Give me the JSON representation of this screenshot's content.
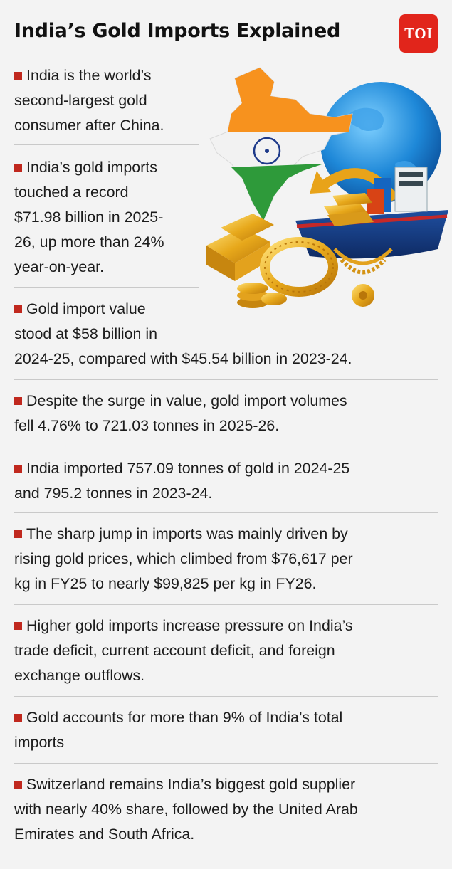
{
  "header": {
    "title": "India’s Gold Imports Explained",
    "logo_text": "TOI"
  },
  "colors": {
    "background": "#f3f3f3",
    "bullet": "#c0281e",
    "logo_bg": "#e1251b",
    "divider": "#c9c9c9"
  },
  "illustration": {
    "icons": [
      "india-map-icon",
      "globe-icon",
      "cargo-ship-icon",
      "gold-bars-icon",
      "gold-coins-icon",
      "gold-bangle-icon",
      "gold-necklace-icon",
      "curved-arrow-icon"
    ]
  },
  "items": [
    {
      "lines": [
        "India is the world’s",
        "second-largest gold",
        "consumer after China."
      ]
    },
    {
      "lines": [
        "India’s gold imports",
        "touched a record",
        "$71.98 billion in 2025-",
        "26, up more than 24%",
        "year-on-year."
      ]
    },
    {
      "lines": [
        "Gold import value",
        "stood at $58 billion in",
        "2024-25, compared with $45.54 billion in 2023-24."
      ]
    },
    {
      "lines": [
        "Despite the surge in value, gold import volumes",
        "fell 4.76% to 721.03 tonnes in 2025-26."
      ]
    },
    {
      "lines": [
        "India imported 757.09 tonnes of gold in 2024-25",
        "and 795.2 tonnes in 2023-24."
      ]
    },
    {
      "lines": [
        "The sharp jump in imports was mainly driven by",
        "rising gold prices, which climbed from $76,617 per",
        "kg in FY25 to nearly $99,825 per kg in FY26."
      ]
    },
    {
      "lines": [
        "Higher gold imports increase pressure on India’s",
        "trade deficit, current account deficit, and foreign",
        "exchange outflows."
      ]
    },
    {
      "lines": [
        "Gold accounts for more than 9% of India’s total",
        "imports"
      ]
    },
    {
      "lines": [
        "Switzerland remains India’s biggest gold supplier",
        "with nearly 40% share, followed by the United Arab",
        "Emirates and South Africa."
      ]
    }
  ]
}
